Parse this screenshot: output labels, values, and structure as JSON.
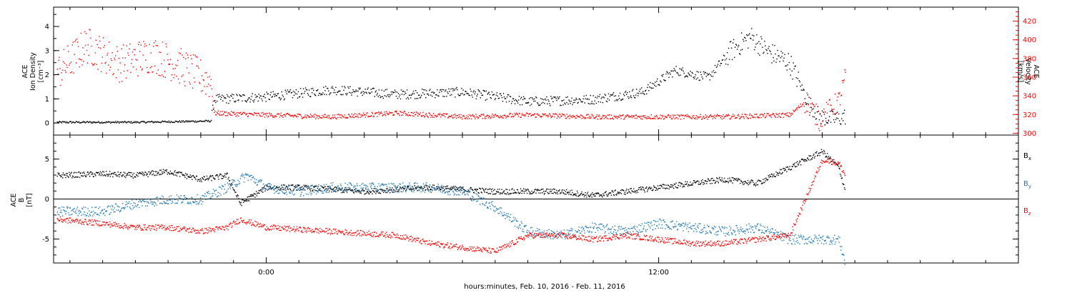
{
  "chart_data": [
    {
      "type": "scatter",
      "ylabel": [
        "ACE",
        "Ion Density",
        "[cm⁻³]"
      ],
      "ylabel_right": [
        "ACE",
        "Velocity",
        "[km/s]"
      ],
      "ylim": [
        -0.5,
        4.8
      ],
      "yticks": [
        "0",
        "1",
        "2",
        "3",
        "4"
      ],
      "ylim_right": [
        298,
        435
      ],
      "yticks_right": [
        "300",
        "320",
        "340",
        "360",
        "380",
        "400",
        "420"
      ],
      "x_unit": "hours since 00:00 Feb. 10, 2016",
      "series": [
        {
          "color": "#000000",
          "x": [
            -6.4,
            -4.0,
            -1.7,
            -1.6,
            0,
            2,
            4,
            6,
            8,
            10,
            11.5,
            12.5,
            13.5,
            14.2,
            14.8,
            15.3,
            16.0,
            16.6,
            16.9,
            17.2,
            17.5,
            17.7
          ],
          "y": [
            0.05,
            0.05,
            0.1,
            1.0,
            1.1,
            1.4,
            1.2,
            1.3,
            0.9,
            1.0,
            1.3,
            2.2,
            1.9,
            3.0,
            3.6,
            3.0,
            2.5,
            0.8,
            0.3,
            0.2,
            0.2,
            0.3
          ]
        },
        {
          "color": "#ff0000",
          "x": [
            -6.4,
            -5.5,
            -4.5,
            -3.5,
            -2.5,
            -1.7,
            -1.6,
            0,
            2,
            4,
            6,
            8,
            10,
            12,
            14,
            16,
            16.5,
            16.9,
            17.2,
            17.5,
            17.7
          ],
          "y": [
            365,
            395,
            375,
            385,
            370,
            355,
            322,
            320,
            318,
            322,
            318,
            320,
            318,
            318,
            318,
            320,
            335,
            315,
            325,
            335,
            360
          ]
        }
      ]
    },
    {
      "type": "scatter",
      "ylabel": [
        "ACE",
        "B",
        "[nT]"
      ],
      "ylim": [
        -8,
        8
      ],
      "yticks": [
        "-5",
        "0",
        "5"
      ],
      "legend": [
        "Bx",
        "By",
        "Bz"
      ],
      "x_unit": "hours since 00:00 Feb. 10, 2016",
      "series": [
        {
          "name": "Bx",
          "color": "#000000",
          "x": [
            -6.4,
            -5.0,
            -4.0,
            -3.0,
            -2.0,
            -1.2,
            -0.8,
            0,
            1,
            3,
            5,
            7,
            9,
            10,
            11,
            12,
            13,
            14,
            15,
            16,
            17.0,
            17.5,
            17.7
          ],
          "y": [
            3.0,
            3.2,
            3.0,
            3.5,
            2.5,
            3.0,
            -0.5,
            1.5,
            1.5,
            1.0,
            1.5,
            1.0,
            1.0,
            0.5,
            1.0,
            1.5,
            2.0,
            2.5,
            2.0,
            4.0,
            6.0,
            4.0,
            1.0
          ]
        },
        {
          "name": "By",
          "color": "#1f77b4",
          "x": [
            -6.4,
            -5.0,
            -4.0,
            -3.0,
            -2.0,
            -1.2,
            -0.6,
            0,
            1,
            2,
            3,
            4,
            5,
            6,
            7,
            8,
            9,
            10,
            11,
            12,
            13,
            14,
            15,
            16,
            17.0,
            17.5,
            17.7
          ],
          "y": [
            -1.5,
            -1.5,
            -0.5,
            0,
            0,
            1.5,
            3.0,
            1.5,
            1.0,
            1.5,
            1.5,
            1.5,
            1.5,
            1.0,
            -1.0,
            -4.0,
            -4.5,
            -3.5,
            -4.0,
            -3.0,
            -3.5,
            -4.0,
            -3.5,
            -5.0,
            -5.0,
            -5.0,
            -8.0
          ]
        },
        {
          "name": "Bz",
          "color": "#ff0000",
          "x": [
            -6.4,
            -5.0,
            -4.0,
            -3.0,
            -2.0,
            -1.2,
            -0.8,
            0,
            2,
            4,
            5,
            6,
            7,
            8,
            9,
            10,
            11,
            12,
            13,
            14,
            15,
            16,
            17.0,
            17.5,
            17.7
          ],
          "y": [
            -2.5,
            -3.0,
            -3.5,
            -3.5,
            -4.0,
            -3.5,
            -2.5,
            -3.5,
            -4.0,
            -4.5,
            -5.5,
            -6.0,
            -6.5,
            -4.5,
            -4.5,
            -5.0,
            -4.5,
            -5.0,
            -5.5,
            -5.5,
            -5.0,
            -4.5,
            5.0,
            4.5,
            3.0
          ]
        }
      ]
    }
  ],
  "xaxis": {
    "tick_labels": [
      "0:00",
      "12:00"
    ],
    "label": "hours:minutes, Feb. 10, 2016 - Feb. 11, 2016"
  }
}
